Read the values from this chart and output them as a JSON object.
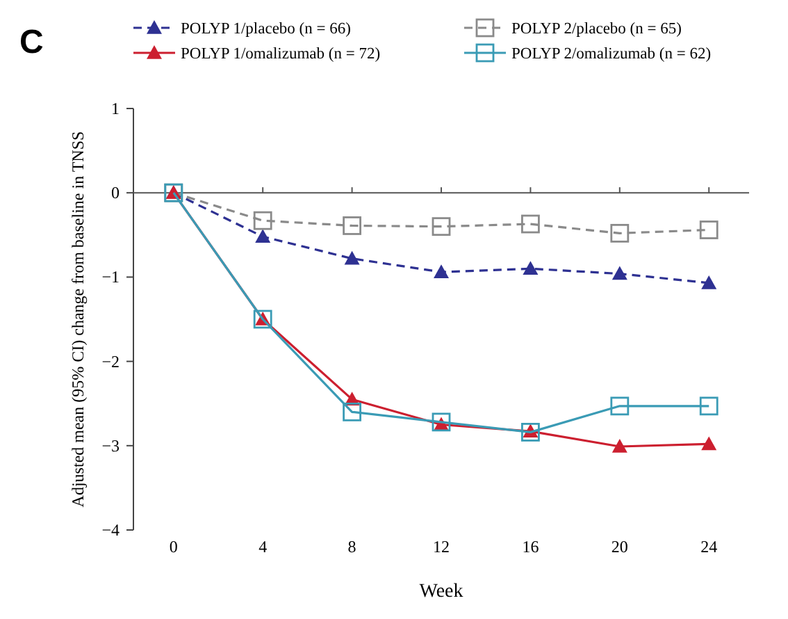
{
  "chart_data": {
    "type": "line",
    "xlabel": "Week",
    "ylabel": "Adjusted mean (95% CI) change from baseline in TNSS",
    "annotations": [
      "C"
    ],
    "x": [
      0,
      4,
      8,
      12,
      16,
      20,
      24
    ],
    "xlim": [
      -1.8,
      25.8
    ],
    "xticks": [
      0,
      4,
      8,
      12,
      16,
      20,
      24
    ],
    "ylim": [
      -4,
      1
    ],
    "yticks": [
      -4,
      -3,
      -2,
      -1,
      0,
      1
    ],
    "legend": "top",
    "grid": false,
    "ref_lines": [
      {
        "axis": "y",
        "value": 0,
        "color": "#555555"
      }
    ],
    "series": [
      {
        "name": "POLYP 1/placebo (n = 66)",
        "color": "#2e3192",
        "marker": "triangle",
        "line_style": "dashed",
        "values": [
          0,
          -0.52,
          -0.78,
          -0.94,
          -0.9,
          -0.96,
          -1.07
        ]
      },
      {
        "name": "POLYP 2/placebo (n = 65)",
        "color": "#8a8a8a",
        "marker": "square",
        "line_style": "dashed",
        "values": [
          0,
          -0.33,
          -0.39,
          -0.4,
          -0.37,
          -0.48,
          -0.44
        ]
      },
      {
        "name": "POLYP 1/omalizumab (n = 72)",
        "color": "#cc1f2f",
        "marker": "triangle",
        "line_style": "solid",
        "values": [
          0,
          -1.5,
          -2.45,
          -2.75,
          -2.83,
          -3.01,
          -2.98
        ]
      },
      {
        "name": "POLYP 2/omalizumab (n = 62)",
        "color": "#3a9bb5",
        "marker": "square",
        "line_style": "solid",
        "values": [
          0,
          -1.5,
          -2.6,
          -2.72,
          -2.84,
          -2.53,
          -2.53
        ]
      }
    ]
  }
}
